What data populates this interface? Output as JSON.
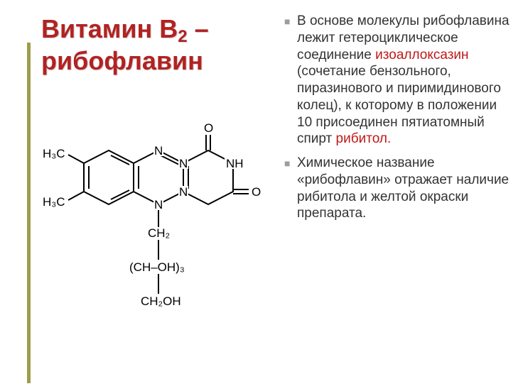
{
  "title": {
    "line1_pre": "Витамин В",
    "line1_sub": "2",
    "line1_post": " –",
    "line2": "рибофлавин"
  },
  "bullets": [
    {
      "segments": [
        {
          "t": "В основе молекулы рибофлавина лежит гетероциклическое соединение ",
          "hl": false
        },
        {
          "t": "изоаллоксазин",
          "hl": true
        },
        {
          "t": " (сочетание бензольного, пиразинового и пиримидинового колец), к которому в положении 10 присоединен пятиатомный спирт ",
          "hl": false
        },
        {
          "t": "рибитол.",
          "hl": true
        }
      ]
    },
    {
      "segments": [
        {
          "t": "Химическое название «рибофлавин» отражает наличие рибитола и желтой окраски препарата.",
          "hl": false
        }
      ]
    }
  ],
  "formula": {
    "labels": {
      "h3c_top": "H₃C",
      "h3c_bot": "H₃C",
      "n1": "N",
      "n2": "N",
      "n3": "N",
      "n4": "N",
      "nh": "NH",
      "o_top": "O",
      "o_right": "O",
      "ch2_a": "CH₂",
      "choh3": "(CH–OH)₃",
      "ch2oh": "CH₂OH"
    },
    "colors": {
      "bond": "#000000",
      "text": "#000000"
    },
    "stroke_width": 2
  },
  "colors": {
    "title": "#b22222",
    "highlight": "#c01818",
    "accent_bar": "#9d9d4c",
    "body_text": "#333333",
    "background": "#ffffff"
  }
}
